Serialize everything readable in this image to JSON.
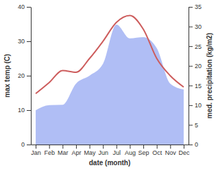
{
  "chart_data": {
    "type": "line",
    "x_label": "date (month)",
    "y_label": "max temp (C)",
    "y2_label": "med. precipitation (kg/m2)",
    "categories": [
      "Jan",
      "Feb",
      "Mar",
      "Apr",
      "May",
      "Jun",
      "Jul",
      "Aug",
      "Sep",
      "Oct",
      "Nov",
      "Dec"
    ],
    "series": [
      {
        "type": "area",
        "axis": "y2",
        "color": "#b0bef5",
        "values": [
          8.7,
          10,
          10.1,
          15.5,
          17.5,
          20.5,
          30.5,
          27,
          27.3,
          24.5,
          15.5,
          14
        ]
      },
      {
        "type": "line",
        "color": "#cd5c5c",
        "values": [
          14.8,
          18,
          21.5,
          21,
          25,
          30,
          35.5,
          37.5,
          33.5,
          25,
          20,
          16.7
        ]
      }
    ],
    "ylim": [
      0,
      40
    ],
    "yticks": [
      0,
      10,
      20,
      30,
      40
    ],
    "y2lim": [
      0,
      35
    ],
    "y2ticks": [
      0,
      5,
      10,
      15,
      20,
      25,
      30,
      35
    ]
  }
}
